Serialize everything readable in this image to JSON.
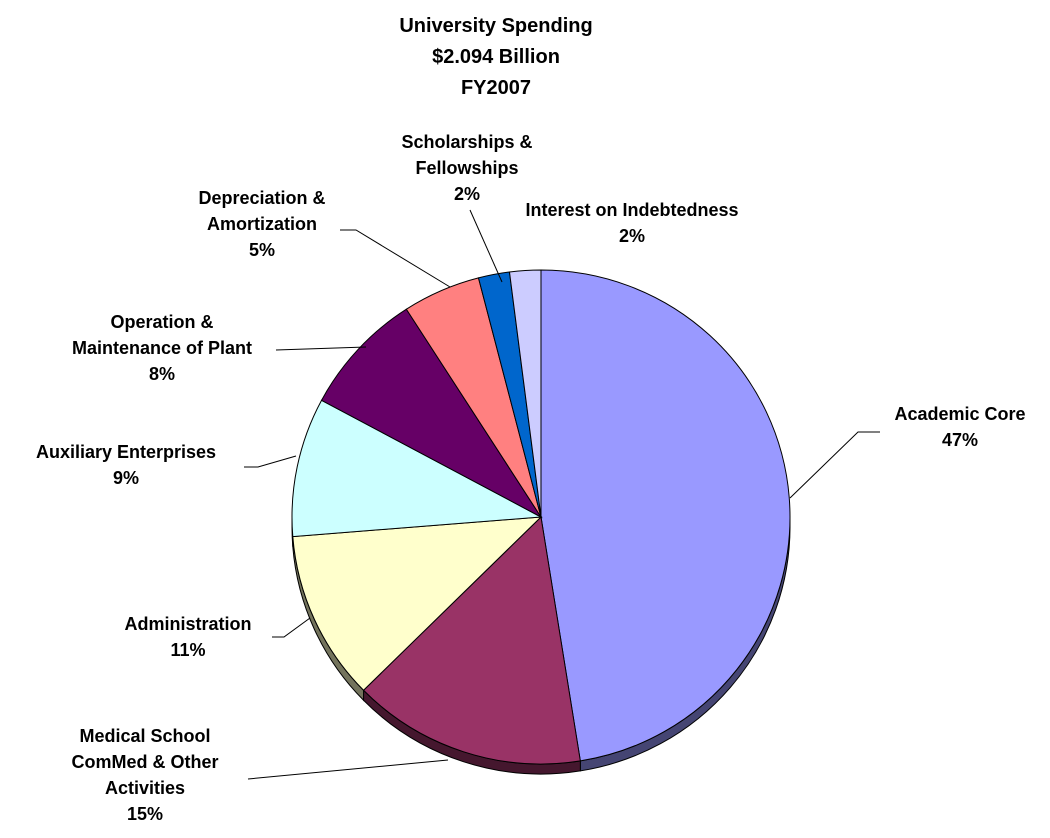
{
  "chart_data": {
    "type": "pie",
    "title": [
      "University Spending",
      "$2.094 Billion",
      "FY2007"
    ],
    "categories": [
      "Academic Core",
      "Medical School ComMed & Other Activities",
      "Administration",
      "Auxiliary Enterprises",
      "Operation & Maintenance of Plant",
      "Depreciation & Amortization",
      "Scholarships & Fellowships",
      "Interest on Indebtedness"
    ],
    "values": [
      47,
      15,
      11,
      9,
      8,
      5,
      2,
      2
    ],
    "units": "%",
    "slices": [
      {
        "label_lines": [
          "Academic Core"
        ],
        "pct_label": "47%",
        "value": 47,
        "color": "#9999ff"
      },
      {
        "label_lines": [
          "Medical School",
          "ComMed & Other",
          "Activities"
        ],
        "pct_label": "15%",
        "value": 15,
        "color": "#993366"
      },
      {
        "label_lines": [
          "Administration"
        ],
        "pct_label": "11%",
        "value": 11,
        "color": "#ffffcc"
      },
      {
        "label_lines": [
          "Auxiliary Enterprises"
        ],
        "pct_label": "9%",
        "value": 9,
        "color": "#ccffff"
      },
      {
        "label_lines": [
          "Operation &",
          "Maintenance of Plant"
        ],
        "pct_label": "8%",
        "value": 8,
        "color": "#660066"
      },
      {
        "label_lines": [
          "Depreciation &",
          "Amortization"
        ],
        "pct_label": "5%",
        "value": 5,
        "color": "#ff8080"
      },
      {
        "label_lines": [
          "Scholarships &",
          "Fellowships"
        ],
        "pct_label": "2%",
        "value": 2,
        "color": "#0066cc"
      },
      {
        "label_lines": [
          "Interest on Indebtedness"
        ],
        "pct_label": "2%",
        "value": 2,
        "color": "#ccccff"
      }
    ],
    "legend": "none",
    "start_angle_deg": 0,
    "direction": "clockwise",
    "style": "3d-tilted"
  }
}
